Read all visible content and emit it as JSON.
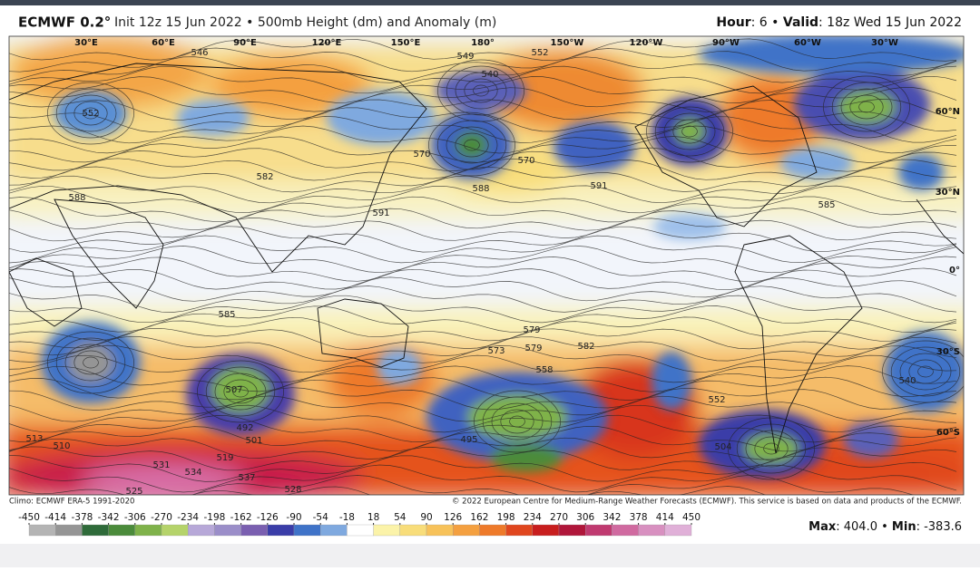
{
  "header": {
    "model": "ECMWF 0.2°",
    "subtitle": "Init 12z 15 Jun 2022 • 500mb Height (dm) and Anomaly (m)",
    "hour_label": "Hour",
    "hour_value": ": 6 • ",
    "valid_label": "Valid",
    "valid_value": ": 18z Wed 15 Jun 2022"
  },
  "map": {
    "lon_labels": [
      "30°E",
      "60°E",
      "90°E",
      "120°E",
      "150°E",
      "180°",
      "150°W",
      "120°W",
      "90°W",
      "60°W",
      "30°W"
    ],
    "lat_labels": [
      "60°N",
      "30°N",
      "0°",
      "30°S",
      "60°S"
    ],
    "contour_labels": [
      "546",
      "552",
      "549",
      "540",
      "552",
      "591",
      "582",
      "588",
      "570",
      "591",
      "585",
      "573",
      "579",
      "582",
      "558",
      "507",
      "492",
      "501",
      "519",
      "531",
      "534",
      "537",
      "528",
      "525",
      "513",
      "510",
      "540",
      "504",
      "495",
      "552",
      "570",
      "588",
      "585",
      "579"
    ]
  },
  "footer": {
    "climo": "Climo: ECMWF ERA-5 1991-2020",
    "copyright": "© 2022 European Centre for Medium-Range Weather Forecasts (ECMWF). This service is based on data and products of the ECMWF."
  },
  "colorbar": {
    "ticks": [
      -450,
      -414,
      -378,
      -342,
      -306,
      -270,
      -234,
      -198,
      -162,
      -126,
      -90,
      -54,
      -18,
      18,
      54,
      90,
      126,
      162,
      198,
      234,
      270,
      306,
      342,
      378,
      414,
      450
    ],
    "colors": [
      "#b4b4b4",
      "#959595",
      "#2f6b3a",
      "#4b8b3b",
      "#7fb24a",
      "#b5d36a",
      "#b7a8d8",
      "#9b8ec9",
      "#7a5fb0",
      "#3a3da8",
      "#3f73c8",
      "#7fa9df",
      "#ffffff",
      "#fbf3a9",
      "#f8dd7a",
      "#f7c25a",
      "#f4a040",
      "#ee7a2a",
      "#e0461e",
      "#c81e1e",
      "#b0163a",
      "#c03a70",
      "#d06aa0",
      "#d890c0",
      "#e0b0d8"
    ]
  },
  "stats": {
    "max_label": "Max",
    "max_value": ": 404.0 • ",
    "min_label": "Min",
    "min_value": ": -383.6"
  }
}
